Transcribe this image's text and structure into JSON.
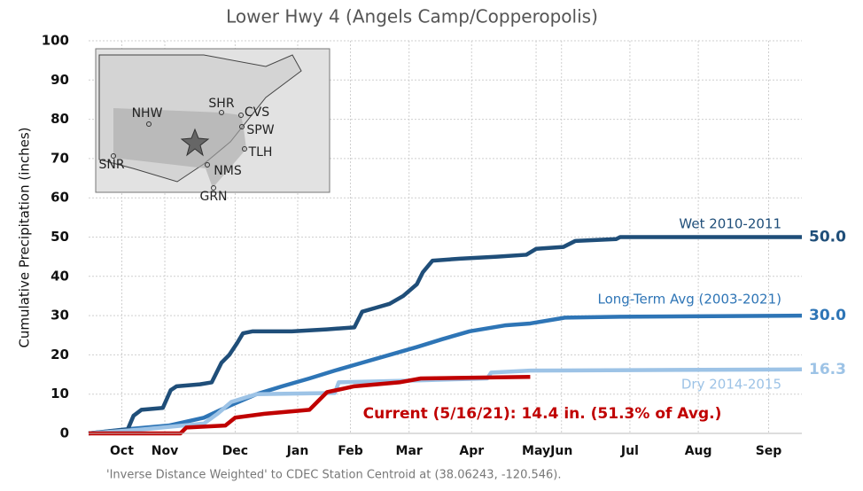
{
  "chart_data": {
    "type": "line",
    "title": "Lower Hwy 4 (Angels Camp/Copperopolis)",
    "y_label": "Cumulative Precipitation (inches)",
    "footnote": "'Inverse Distance Weighted' to CDEC Station Centroid at (38.06243, -120.546).",
    "xlim": [
      0,
      365
    ],
    "xticks": [
      {
        "value": 17,
        "label": "Oct"
      },
      {
        "value": 39,
        "label": "Nov"
      },
      {
        "value": 75,
        "label": "Dec"
      },
      {
        "value": 107,
        "label": "Jan"
      },
      {
        "value": 134,
        "label": "Feb"
      },
      {
        "value": 164,
        "label": "Mar"
      },
      {
        "value": 196,
        "label": "Apr"
      },
      {
        "value": 229,
        "label": "May"
      },
      {
        "value": 242,
        "label": "Jun"
      },
      {
        "value": 277,
        "label": "Jul"
      },
      {
        "value": 312,
        "label": "Aug"
      },
      {
        "value": 348,
        "label": "Sep"
      }
    ],
    "ylim": [
      0,
      100
    ],
    "yticks": [
      0,
      10,
      20,
      30,
      40,
      50,
      60,
      70,
      80,
      90,
      100
    ],
    "grid": true,
    "series": [
      {
        "name": "Long-Term Avg (2003-2021)",
        "color": "#2e75b6",
        "x": [
          0,
          18,
          41,
          59,
          72,
          86,
          99,
          113,
          126,
          140,
          154,
          168,
          181,
          195,
          213,
          226,
          244,
          272,
          365
        ],
        "values": [
          0,
          1,
          2,
          4,
          7,
          10,
          12,
          14,
          16,
          18,
          20,
          22,
          24,
          26,
          27.5,
          28,
          29.5,
          29.7,
          30
        ],
        "value_labels": [
          null,
          null,
          null,
          null,
          null,
          null,
          null,
          null,
          null,
          null,
          null,
          null,
          null,
          null,
          null,
          null,
          null,
          null,
          "30.0"
        ]
      },
      {
        "name": "Wet 2010-2011",
        "color": "#1f4e79",
        "x": [
          0,
          20,
          23,
          27,
          38,
          42,
          45,
          57,
          63,
          68,
          72,
          76,
          79,
          84,
          104,
          122,
          136,
          140,
          147,
          154,
          161,
          168,
          171,
          176,
          190,
          209,
          224,
          229,
          243,
          249,
          270,
          272,
          365
        ],
        "values": [
          0,
          1,
          4.5,
          6,
          6.5,
          11,
          12,
          12.5,
          13,
          18,
          20,
          23,
          25.5,
          26,
          26,
          26.5,
          27,
          31,
          32,
          33,
          35,
          38,
          41,
          44,
          44.5,
          45,
          45.5,
          47,
          47.5,
          49,
          49.5,
          50,
          50
        ],
        "value_labels": [
          null,
          null,
          null,
          null,
          null,
          null,
          null,
          null,
          null,
          null,
          null,
          null,
          null,
          null,
          null,
          null,
          null,
          null,
          null,
          null,
          null,
          null,
          null,
          null,
          null,
          null,
          null,
          null,
          null,
          null,
          null,
          null,
          "50.0"
        ]
      },
      {
        "name": "Dry 2014-2015",
        "color": "#9dc3e6",
        "x": [
          0,
          27,
          59,
          66,
          73,
          86,
          126,
          128,
          168,
          204,
          206,
          226,
          365
        ],
        "values": [
          0,
          1,
          2.5,
          5,
          8,
          10,
          10.3,
          13,
          13.5,
          14,
          15.5,
          16,
          16.3
        ],
        "value_labels": [
          null,
          null,
          null,
          null,
          null,
          null,
          null,
          null,
          null,
          null,
          null,
          null,
          "16.3"
        ]
      },
      {
        "name": "Current (5/16/21): 14.4 in. (51.3% of Avg.)",
        "color": "#c00000",
        "x": [
          0,
          47,
          50,
          70,
          75,
          90,
          113,
          122,
          136,
          159,
          170,
          226
        ],
        "values": [
          0,
          0,
          1.5,
          2,
          4,
          5,
          6,
          10.5,
          12,
          13,
          14,
          14.4
        ]
      }
    ],
    "inset_map": {
      "stations": [
        "SHR",
        "CVS",
        "NHW",
        "SPW",
        "TLH",
        "SNR",
        "NMS",
        "GRN"
      ]
    }
  }
}
